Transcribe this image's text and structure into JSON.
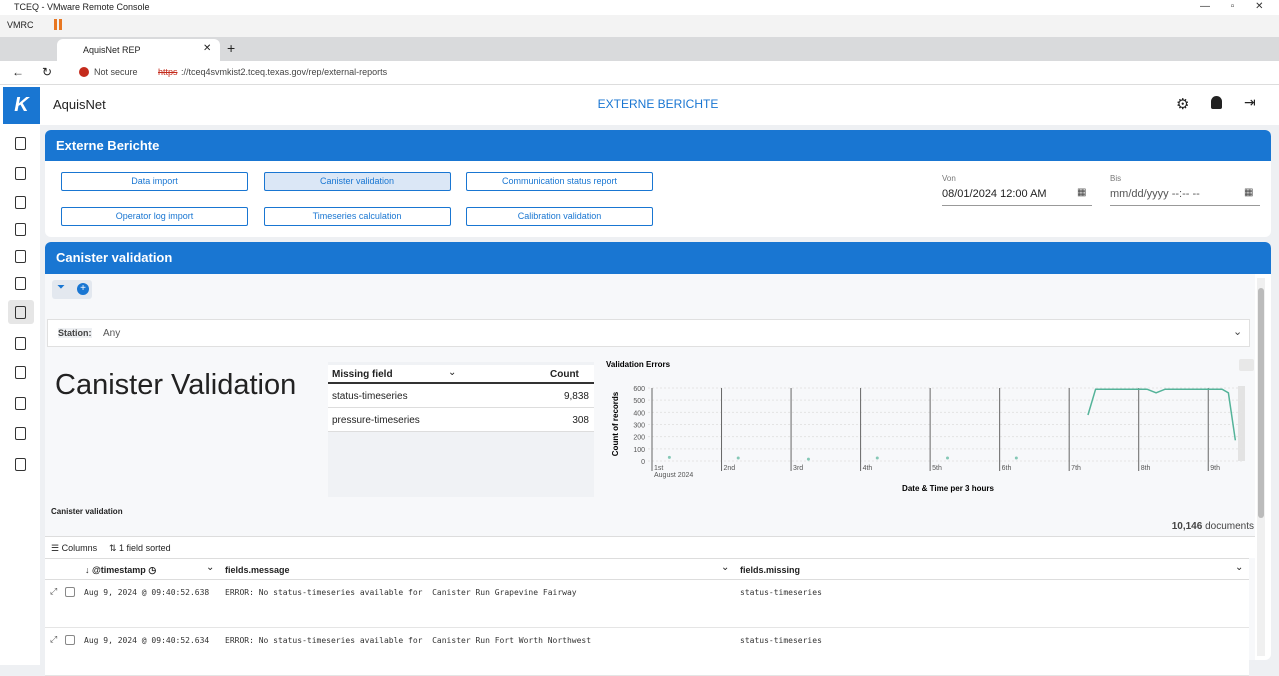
{
  "window": {
    "title": "TCEQ - VMware Remote Console",
    "menu": "VMRC"
  },
  "browser": {
    "tab": "AquisNet REP",
    "security": "Not secure",
    "url_scheme": "https",
    "url_rest": "://tceq4svmkist2.tceq.texas.gov/rep/external-reports"
  },
  "app": {
    "name": "AquisNet",
    "page_title": "EXTERNE BERICHTE"
  },
  "reports": {
    "title": "Externe Berichte",
    "buttons": [
      "Data import",
      "Canister validation",
      "Communication status report",
      "Operator log import",
      "Timeseries calculation",
      "Calibration validation"
    ],
    "selected": 1,
    "from_label": "Von",
    "from_value": "08/01/2024 12:00 AM",
    "to_label": "Bis",
    "to_placeholder": "mm/dd/yyyy --:-- --"
  },
  "section": {
    "title": "Canister validation",
    "station_label": "Station:",
    "station_value": "Any"
  },
  "dashboard": {
    "title": "Canister Validation",
    "table": {
      "columns": [
        "Missing field",
        "Count"
      ],
      "rows": [
        [
          "status-timeseries",
          "9,838"
        ],
        [
          "pressure-timeseries",
          "308"
        ]
      ]
    },
    "chart": {
      "type": "line",
      "title": "Validation Errors",
      "y_label": "Count of records",
      "x_label": "Date & Time per 3 hours",
      "x_period": "August 2024",
      "xlim": [
        0,
        8.5
      ],
      "xticks": [
        {
          "value": 0,
          "label": "1st"
        },
        {
          "value": 1,
          "label": "2nd"
        },
        {
          "value": 2,
          "label": "3rd"
        },
        {
          "value": 3,
          "label": "4th"
        },
        {
          "value": 4,
          "label": "5th"
        },
        {
          "value": 5,
          "label": "6th"
        },
        {
          "value": 6,
          "label": "7th"
        },
        {
          "value": 7,
          "label": "8th"
        },
        {
          "value": 8,
          "label": "9th"
        }
      ],
      "ylim": [
        0,
        600
      ],
      "yticks": [
        0,
        100,
        200,
        300,
        400,
        500,
        600
      ],
      "grid": true,
      "series": [
        {
          "color": "#54b399",
          "x": [
            0.25,
            0.5,
            1.24,
            1.5,
            2.25,
            2.5,
            3.24,
            3.5,
            4.25,
            4.5,
            5.24,
            5.5,
            6.27,
            6.38,
            7.12,
            7.25,
            7.38,
            8.2,
            8.29,
            8.39
          ],
          "values": [
            30,
            null,
            25,
            null,
            15,
            null,
            25,
            null,
            25,
            null,
            25,
            null,
            378,
            590,
            590,
            560,
            590,
            590,
            560,
            170
          ]
        }
      ]
    }
  },
  "discover": {
    "title": "Canister validation",
    "hits": "10,146",
    "hits_unit": "documents",
    "columns_button": "Columns",
    "sort_info": "1 field sorted",
    "columns": [
      "@timestamp",
      "fields.message",
      "fields.missing"
    ],
    "rows": [
      [
        "Aug 9, 2024 @ 09:40:52.638",
        "ERROR: No status-timeseries available for  Canister Run Grapevine Fairway",
        "status-timeseries"
      ],
      [
        "Aug 9, 2024 @ 09:40:52.634",
        "ERROR: No status-timeseries available for  Canister Run Fort Worth Northwest",
        "status-timeseries"
      ]
    ]
  }
}
